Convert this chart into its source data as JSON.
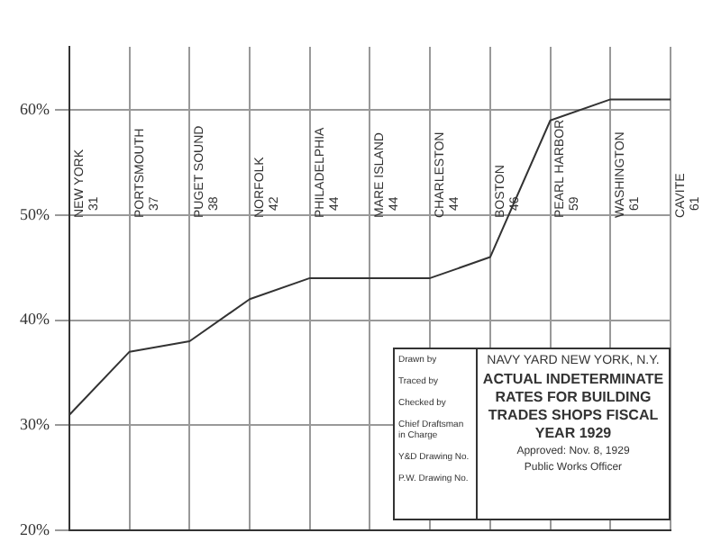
{
  "chart_data": {
    "type": "line",
    "title": "NAVY YARD   NEW YORK, N.Y.",
    "subtitle": "ACTUAL INDETERMINATE RATES FOR BUILDING TRADES SHOPS FISCAL YEAR 1929",
    "categories": [
      "NEW YORK\n31",
      "PORTSMOUTH\n37",
      "PUGET SOUND\n38",
      "NORFOLK\n42",
      "PHILADELPHIA\n44",
      "MARE ISLAND\n44",
      "CHARLESTON\n44",
      "BOSTON\n46",
      "PEARL HARBOR\n59",
      "WASHINGTON\n61",
      "CAVITE\n61"
    ],
    "values": [
      31,
      37,
      38,
      42,
      44,
      44,
      44,
      46,
      59,
      61,
      61
    ],
    "color": "#333333",
    "marker": "none",
    "line_style": "solid",
    "grid": true,
    "legend": false,
    "ylim": [
      20,
      66
    ],
    "yticks": [
      {
        "value": 20,
        "label": "20%"
      },
      {
        "value": 30,
        "label": "30%"
      },
      {
        "value": 40,
        "label": "40%"
      },
      {
        "value": 50,
        "label": "50%"
      },
      {
        "value": 60,
        "label": "60%"
      }
    ],
    "annotations": [
      "Drawn by",
      "Traced by",
      "Checked by",
      "Chief Draftsman in Charge",
      "Y&D Drawing No.",
      "P.W. Drawing No.",
      "Approved: Nov. 8, 1929",
      "Public Works Officer"
    ]
  }
}
